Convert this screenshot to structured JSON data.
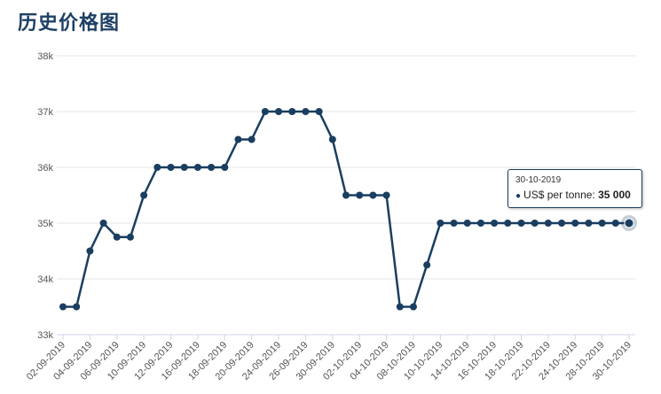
{
  "page": {
    "title": "历史价格图"
  },
  "tooltip": {
    "date": "30-10-2019",
    "series_label": "US$ per tonne: ",
    "value": "35 000"
  },
  "chart_data": {
    "type": "line",
    "title": "历史价格图",
    "xlabel": "",
    "ylabel": "",
    "ylim": [
      33000,
      38000
    ],
    "y_ticks": [
      33000,
      34000,
      35000,
      36000,
      37000,
      38000
    ],
    "y_tick_labels": [
      "33k",
      "34k",
      "35k",
      "36k",
      "37k",
      "38k"
    ],
    "x_tick_labels": [
      "02-09-2019",
      "04-09-2019",
      "06-09-2019",
      "10-09-2019",
      "12-09-2019",
      "16-09-2019",
      "18-09-2019",
      "20-09-2019",
      "24-09-2019",
      "26-09-2019",
      "30-09-2019",
      "02-10-2019",
      "04-10-2019",
      "08-10-2019",
      "10-10-2019",
      "14-10-2019",
      "16-10-2019",
      "18-10-2019",
      "22-10-2019",
      "24-10-2019",
      "28-10-2019",
      "30-10-2019"
    ],
    "grid": true,
    "colors": {
      "line": "#1a3e60",
      "grid": "#e6e6e6",
      "axis": "#ccd6eb"
    },
    "series": [
      {
        "name": "US$ per tonne",
        "values": [
          33500,
          33500,
          34500,
          35000,
          34750,
          34750,
          35500,
          36000,
          36000,
          36000,
          36000,
          36000,
          36000,
          36500,
          36500,
          37000,
          37000,
          37000,
          37000,
          37000,
          36500,
          35500,
          35500,
          35500,
          35500,
          33500,
          33500,
          34250,
          35000,
          35000,
          35000,
          35000,
          35000,
          35000,
          35000,
          35000,
          35000,
          35000,
          35000,
          35000,
          35000,
          35000,
          35000
        ]
      }
    ]
  }
}
